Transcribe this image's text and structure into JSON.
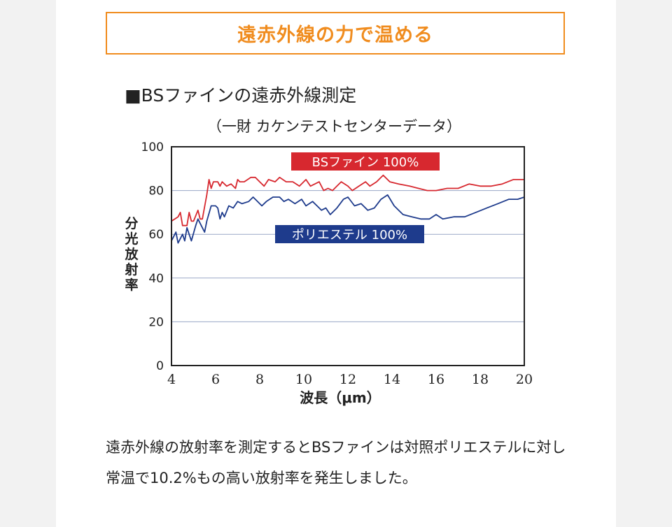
{
  "page": {
    "title": "遠赤外線の力で温める",
    "section_heading": "■BSファインの遠赤外線測定",
    "source_note": "（一財 カケンテストセンターデータ）",
    "body_text": "遠赤外線の放射率を測定するとBSファインは対照ポリエステルに対し常温で10.2%もの高い放射率を発生しました。",
    "accent_color": "#f08c1e"
  },
  "chart_data": {
    "type": "line",
    "xlabel": "波長（μm）",
    "ylabel": "分光放射率",
    "xlim": [
      4,
      20
    ],
    "ylim": [
      0,
      100
    ],
    "x_ticks": [
      4,
      6,
      8,
      10,
      12,
      14,
      16,
      18,
      20
    ],
    "y_ticks": [
      0,
      20,
      40,
      60,
      80,
      100
    ],
    "grid": "horizontal",
    "series": [
      {
        "name": "BSファイン 100%",
        "color": "#d7282f",
        "points": [
          [
            4.0,
            66
          ],
          [
            4.3,
            68
          ],
          [
            4.4,
            70
          ],
          [
            4.5,
            64
          ],
          [
            4.7,
            64
          ],
          [
            4.8,
            70
          ],
          [
            4.9,
            66
          ],
          [
            5.0,
            66
          ],
          [
            5.2,
            71
          ],
          [
            5.3,
            67
          ],
          [
            5.4,
            67
          ],
          [
            5.6,
            78
          ],
          [
            5.7,
            85
          ],
          [
            5.8,
            81
          ],
          [
            5.9,
            84
          ],
          [
            6.1,
            84
          ],
          [
            6.2,
            82
          ],
          [
            6.3,
            84
          ],
          [
            6.5,
            82
          ],
          [
            6.7,
            83
          ],
          [
            6.9,
            81
          ],
          [
            7.0,
            85
          ],
          [
            7.1,
            84
          ],
          [
            7.3,
            84
          ],
          [
            7.6,
            86
          ],
          [
            7.8,
            86
          ],
          [
            8.0,
            84
          ],
          [
            8.2,
            82
          ],
          [
            8.4,
            85
          ],
          [
            8.7,
            84
          ],
          [
            8.9,
            86
          ],
          [
            9.2,
            84
          ],
          [
            9.5,
            84
          ],
          [
            9.8,
            82
          ],
          [
            10.1,
            85
          ],
          [
            10.3,
            82
          ],
          [
            10.5,
            83
          ],
          [
            10.7,
            84
          ],
          [
            10.9,
            80
          ],
          [
            11.1,
            81
          ],
          [
            11.3,
            80
          ],
          [
            11.5,
            82
          ],
          [
            11.7,
            84
          ],
          [
            12.0,
            82
          ],
          [
            12.2,
            80
          ],
          [
            12.5,
            82
          ],
          [
            12.8,
            84
          ],
          [
            13.0,
            82
          ],
          [
            13.3,
            84
          ],
          [
            13.6,
            87
          ],
          [
            13.9,
            84
          ],
          [
            14.3,
            83
          ],
          [
            14.8,
            82
          ],
          [
            15.2,
            81
          ],
          [
            15.6,
            80
          ],
          [
            16.0,
            80
          ],
          [
            16.5,
            81
          ],
          [
            17.0,
            81
          ],
          [
            17.5,
            83
          ],
          [
            18.0,
            82
          ],
          [
            18.5,
            82
          ],
          [
            19.0,
            83
          ],
          [
            19.5,
            85
          ],
          [
            20.0,
            85
          ]
        ]
      },
      {
        "name": "ポリエステル 100%",
        "color": "#1e3b8c",
        "points": [
          [
            4.0,
            57
          ],
          [
            4.2,
            61
          ],
          [
            4.3,
            56
          ],
          [
            4.5,
            60
          ],
          [
            4.6,
            57
          ],
          [
            4.7,
            63
          ],
          [
            4.8,
            60
          ],
          [
            4.9,
            57
          ],
          [
            5.1,
            64
          ],
          [
            5.2,
            67
          ],
          [
            5.4,
            63
          ],
          [
            5.5,
            61
          ],
          [
            5.6,
            66
          ],
          [
            5.8,
            73
          ],
          [
            6.0,
            73
          ],
          [
            6.1,
            72
          ],
          [
            6.2,
            67
          ],
          [
            6.3,
            70
          ],
          [
            6.4,
            68
          ],
          [
            6.6,
            73
          ],
          [
            6.8,
            72
          ],
          [
            7.0,
            75
          ],
          [
            7.2,
            74
          ],
          [
            7.5,
            75
          ],
          [
            7.7,
            77
          ],
          [
            7.9,
            75
          ],
          [
            8.1,
            73
          ],
          [
            8.3,
            75
          ],
          [
            8.6,
            77
          ],
          [
            8.9,
            77
          ],
          [
            9.1,
            75
          ],
          [
            9.3,
            76
          ],
          [
            9.6,
            74
          ],
          [
            9.9,
            76
          ],
          [
            10.1,
            73
          ],
          [
            10.4,
            75
          ],
          [
            10.6,
            73
          ],
          [
            10.8,
            71
          ],
          [
            11.0,
            72
          ],
          [
            11.2,
            69
          ],
          [
            11.5,
            72
          ],
          [
            11.8,
            76
          ],
          [
            12.0,
            77
          ],
          [
            12.3,
            73
          ],
          [
            12.6,
            74
          ],
          [
            12.9,
            71
          ],
          [
            13.2,
            72
          ],
          [
            13.5,
            76
          ],
          [
            13.8,
            78
          ],
          [
            14.1,
            73
          ],
          [
            14.5,
            69
          ],
          [
            14.9,
            68
          ],
          [
            15.3,
            67
          ],
          [
            15.7,
            67
          ],
          [
            16.0,
            69
          ],
          [
            16.3,
            67
          ],
          [
            16.8,
            68
          ],
          [
            17.3,
            68
          ],
          [
            17.8,
            70
          ],
          [
            18.3,
            72
          ],
          [
            18.8,
            74
          ],
          [
            19.3,
            76
          ],
          [
            19.7,
            76
          ],
          [
            20.0,
            77
          ]
        ]
      }
    ]
  }
}
